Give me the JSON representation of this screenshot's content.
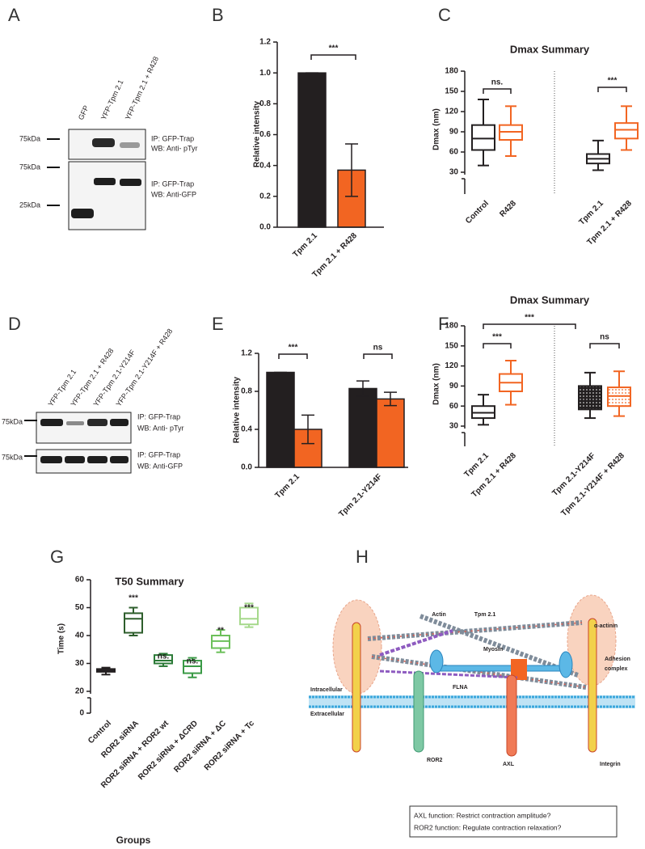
{
  "blots": [
    {
      "panel": "A",
      "lanes": [
        "GFP",
        "YFP-Tpm 2.1",
        "YFP-Tpm 2.1 + R428"
      ],
      "markers": [
        "75kDa",
        "75kDa",
        "25kDa"
      ],
      "labels": [
        [
          "IP:  GFP-Trap",
          "WB:  Anti- pTyr"
        ],
        [
          "IP:  GFP-Trap",
          "WB: Anti-GFP"
        ]
      ]
    },
    {
      "panel": "D",
      "lanes": [
        "YFP-Tpm 2.1",
        "YFP-Tpm 2.1 + R428",
        "YFP-Tpm 2.1-Y214F",
        "YFP-Tpm 2.1-Y214F + R428"
      ],
      "markers": [
        "75kDa",
        "75kDa"
      ],
      "labels": [
        [
          "IP:   GFP-Trap",
          "WB:  Anti- pTyr"
        ],
        [
          "IP:   GFP-Trap",
          "WB:  Anti-GFP"
        ]
      ]
    }
  ],
  "chart_data": [
    {
      "panel": "B",
      "type": "bar",
      "y_label": "Relative intensity",
      "categories": [
        "Tpm 2.1",
        "Tpm 2.1 + R428"
      ],
      "values": [
        1.0,
        0.37
      ],
      "errors": [
        0,
        0.17
      ],
      "colors": [
        "#231f20",
        "#f26522"
      ],
      "ylim": [
        0,
        1.2
      ],
      "yticks": [
        {
          "value": 0,
          "label": "0.0"
        },
        0.2,
        0.4,
        0.6,
        0.8,
        {
          "value": 1,
          "label": "1.0"
        },
        1.2
      ],
      "annotations": [
        "***"
      ]
    },
    {
      "panel": "C",
      "type": "box",
      "title": "Dmax Summary",
      "y_label": "Dmax (nm)",
      "categories": [
        "Control",
        "R428",
        "Tpm 2.1",
        "Tpm 2.1 + R428"
      ],
      "boxes": [
        {
          "min": 40,
          "q1": 63,
          "median": 80,
          "q3": 100,
          "max": 138
        },
        {
          "min": 54,
          "q1": 78,
          "median": 90,
          "q3": 100,
          "max": 128
        },
        {
          "min": 33,
          "q1": 43,
          "median": 50,
          "q3": 57,
          "max": 77
        },
        {
          "min": 63,
          "q1": 80,
          "median": 93,
          "q3": 103,
          "max": 128
        }
      ],
      "colors": [
        "#231f20",
        "#f26522",
        "#231f20",
        "#f26522"
      ],
      "ylim": [
        0,
        180
      ],
      "yticks": [
        30,
        60,
        90,
        120,
        150,
        180
      ],
      "axis_break": true,
      "annotations": [
        "ns.",
        "***"
      ]
    },
    {
      "panel": "E",
      "type": "bar",
      "y_label": "Relative intensity",
      "categories": [
        "Tpm 2.1",
        "Tpm 2.1-Y214F"
      ],
      "series": [
        {
          "color": "#231f20",
          "values": [
            1.0,
            0.83
          ],
          "errors": [
            0,
            0.08
          ]
        },
        {
          "color": "#f26522",
          "values": [
            0.4,
            0.72
          ],
          "errors": [
            0.15,
            0.07
          ]
        }
      ],
      "ylim": [
        0,
        1.2
      ],
      "yticks": [
        {
          "value": 0,
          "label": "0.0"
        },
        0.4,
        0.8,
        1.2
      ],
      "annotations": [
        "***",
        "ns"
      ]
    },
    {
      "panel": "F",
      "type": "box",
      "title": "Dmax Summary",
      "y_label": "Dmax (nm)",
      "categories": [
        "Tpm 2.1",
        "Tpm 2.1 + R428",
        "Tpm 2.1-Y214F",
        "Tpm 2.1-Y214F + R428"
      ],
      "boxes": [
        {
          "min": 32,
          "q1": 42,
          "median": 50,
          "q3": 60,
          "max": 77
        },
        {
          "min": 62,
          "q1": 82,
          "median": 95,
          "q3": 108,
          "max": 128
        },
        {
          "min": 42,
          "q1": 55,
          "median": 68,
          "q3": 90,
          "max": 110
        },
        {
          "min": 45,
          "q1": 60,
          "median": 75,
          "q3": 88,
          "max": 112
        }
      ],
      "colors": [
        "#231f20",
        "#f26522",
        "#231f20",
        "#f26522"
      ],
      "patterned": [
        false,
        false,
        true,
        true
      ],
      "ylim": [
        0,
        180
      ],
      "yticks": [
        30,
        60,
        90,
        120,
        150,
        180
      ],
      "axis_break": true,
      "annotations": [
        "***",
        "***",
        "ns"
      ]
    },
    {
      "panel": "G",
      "type": "box",
      "title": "T50 Summary",
      "y_label": "Time (s)",
      "x_label": "Groups",
      "categories": [
        "Control",
        "ROR2 siRNA",
        "ROR2 siRNA + ROR2 wt",
        "ROR2 siRNa + ΔCRD",
        "ROR2 siRNA + ΔC",
        "ROR2 siRNA + Tc"
      ],
      "boxes": [
        {
          "min": 26,
          "q1": 27,
          "median": 27.5,
          "q3": 28,
          "max": 28.5
        },
        {
          "min": 40,
          "q1": 41,
          "median": 46,
          "q3": 48,
          "max": 50
        },
        {
          "min": 29,
          "q1": 30,
          "median": 31,
          "q3": 33,
          "max": 33.5
        },
        {
          "min": 25,
          "q1": 26.5,
          "median": 29,
          "q3": 31,
          "max": 32
        },
        {
          "min": 34,
          "q1": 35.5,
          "median": 38,
          "q3": 40,
          "max": 42
        },
        {
          "min": 43,
          "q1": 44,
          "median": 46,
          "q3": 50,
          "max": 51.5
        }
      ],
      "colors": [
        "#231f20",
        "#2e5e2c",
        "#2b7a37",
        "#3a9a46",
        "#6cc05a",
        "#a6d98c"
      ],
      "ylim": [
        0,
        60
      ],
      "yticks": [
        0,
        20,
        30,
        40,
        50,
        60
      ],
      "axis_break": true,
      "annotations": [
        "***",
        "ns.",
        "ns.",
        "**",
        "***"
      ]
    }
  ],
  "diagram": {
    "panel": "H",
    "labels": {
      "actin": "Actin",
      "tpm": "Tpm 2.1",
      "alpha_actinin": "α-actinin",
      "myosin": "Myosin",
      "adhesion": [
        "Adhesion",
        "complex"
      ],
      "flna": "FLNA",
      "intracellular": "Intracellular",
      "extracellular": "Extracellular",
      "ror2": "ROR2",
      "axl": "AXL",
      "integrin": "Integrin"
    },
    "notes": [
      "AXL function: Restrict contraction amplitude?",
      "ROR2 function: Regulate contraction relaxation?"
    ]
  }
}
